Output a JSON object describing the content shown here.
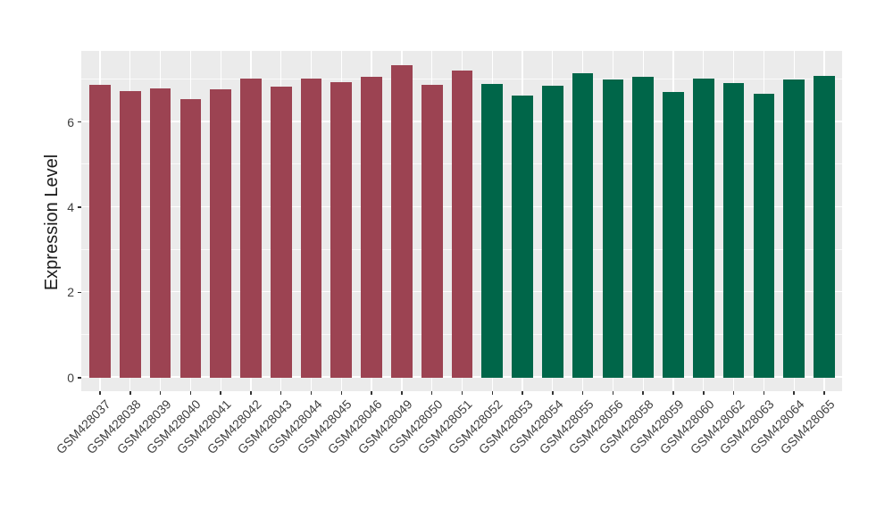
{
  "figure": {
    "background_color": "#ffffff",
    "panel_background_color": "#ebebeb",
    "grid_color": "#ffffff",
    "axis_text_color": "#404040",
    "axis_title_color": "#1a1a1a"
  },
  "chart_data": {
    "type": "bar",
    "title": "",
    "xlabel": "",
    "ylabel": "Expression Level",
    "legend": "none",
    "grid": true,
    "ylim": [
      0,
      7.68
    ],
    "yticks": [
      0,
      2,
      4,
      6
    ],
    "minor_yticks": [
      1,
      3,
      5,
      7
    ],
    "categories": [
      "GSM428037",
      "GSM428038",
      "GSM428039",
      "GSM428040",
      "GSM428041",
      "GSM428042",
      "GSM428043",
      "GSM428044",
      "GSM428045",
      "GSM428046",
      "GSM428049",
      "GSM428050",
      "GSM428051",
      "GSM428052",
      "GSM428053",
      "GSM428054",
      "GSM428055",
      "GSM428056",
      "GSM428058",
      "GSM428059",
      "GSM428060",
      "GSM428062",
      "GSM428063",
      "GSM428064",
      "GSM428065"
    ],
    "values": [
      6.87,
      6.72,
      6.78,
      6.53,
      6.76,
      7.02,
      6.84,
      7.02,
      6.93,
      7.06,
      7.33,
      6.88,
      7.22,
      6.9,
      6.62,
      6.85,
      7.14,
      7.01,
      7.07,
      6.71,
      7.02,
      6.91,
      6.67,
      6.99,
      7.09
    ],
    "groups": [
      "group1",
      "group1",
      "group1",
      "group1",
      "group1",
      "group1",
      "group1",
      "group1",
      "group1",
      "group1",
      "group1",
      "group1",
      "group1",
      "group2",
      "group2",
      "group2",
      "group2",
      "group2",
      "group2",
      "group2",
      "group2",
      "group2",
      "group2",
      "group2",
      "group2"
    ],
    "group_colors": {
      "group1": "#9c4352",
      "group2": "#006649"
    }
  }
}
